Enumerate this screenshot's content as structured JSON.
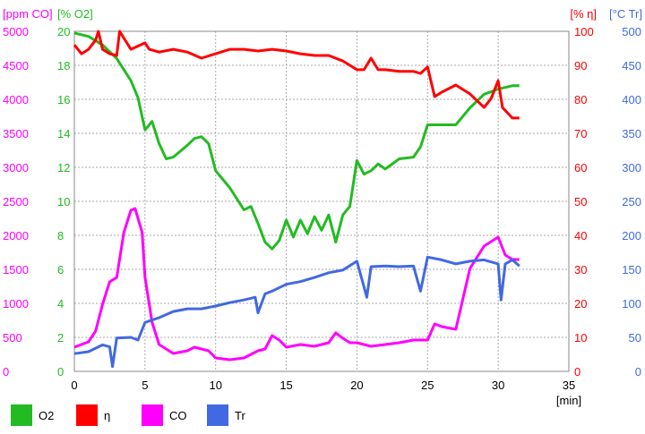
{
  "chart_data": {
    "type": "line",
    "xlabel": "[min]",
    "xlim": [
      0,
      35
    ],
    "xticks": [
      0,
      5,
      10,
      15,
      20,
      25,
      30,
      35
    ],
    "grid": true,
    "legend_placement": "bottom-left",
    "axes": {
      "co": {
        "label": "[ppm CO]",
        "range": [
          0,
          5000
        ],
        "ticks": [
          0,
          500,
          1000,
          1500,
          2000,
          2500,
          3000,
          3500,
          4000,
          4500,
          5000
        ],
        "color": "#ff00ff",
        "side": "left-outer"
      },
      "o2": {
        "label": "[% O2]",
        "range": [
          0,
          20
        ],
        "ticks": [
          0,
          2,
          4,
          6,
          8,
          10,
          12,
          14,
          16,
          18,
          20
        ],
        "color": "#22bb22",
        "side": "left-inner"
      },
      "eta": {
        "label": "[% η]",
        "range": [
          0,
          100
        ],
        "ticks": [
          0,
          10,
          20,
          30,
          40,
          50,
          60,
          70,
          80,
          90,
          100
        ],
        "color": "#ff0000",
        "side": "right-inner"
      },
      "tr": {
        "label": "[°C Tr]",
        "range": [
          0,
          500
        ],
        "ticks": [
          0,
          50,
          100,
          150,
          200,
          250,
          300,
          350,
          400,
          450,
          500
        ],
        "color": "#4169e1",
        "side": "right-outer"
      }
    },
    "series": [
      {
        "name": "O2",
        "axis": "o2",
        "color": "#22bb22",
        "points": [
          [
            0,
            19.9
          ],
          [
            1,
            19.7
          ],
          [
            2,
            19.2
          ],
          [
            3,
            18.4
          ],
          [
            4,
            17.1
          ],
          [
            4.5,
            16.1
          ],
          [
            5,
            14.2
          ],
          [
            5.5,
            14.7
          ],
          [
            6,
            13.4
          ],
          [
            6.5,
            12.5
          ],
          [
            7,
            12.6
          ],
          [
            8,
            13.3
          ],
          [
            8.5,
            13.7
          ],
          [
            9,
            13.8
          ],
          [
            9.5,
            13.4
          ],
          [
            10,
            11.8
          ],
          [
            11,
            10.8
          ],
          [
            12,
            9.5
          ],
          [
            12.5,
            9.7
          ],
          [
            13,
            8.7
          ],
          [
            13.5,
            7.6
          ],
          [
            14,
            7.2
          ],
          [
            14.5,
            7.7
          ],
          [
            15,
            8.9
          ],
          [
            15.5,
            7.9
          ],
          [
            16,
            8.9
          ],
          [
            16.5,
            8.1
          ],
          [
            17,
            9.1
          ],
          [
            17.5,
            8.3
          ],
          [
            18,
            9.2
          ],
          [
            18.5,
            7.6
          ],
          [
            19,
            9.2
          ],
          [
            19.5,
            9.7
          ],
          [
            20,
            12.4
          ],
          [
            20.5,
            11.6
          ],
          [
            21,
            11.8
          ],
          [
            21.5,
            12.2
          ],
          [
            22,
            11.9
          ],
          [
            23,
            12.5
          ],
          [
            24,
            12.6
          ],
          [
            24.5,
            13.2
          ],
          [
            25,
            14.5
          ],
          [
            26,
            14.5
          ],
          [
            27,
            14.5
          ],
          [
            28,
            15.5
          ],
          [
            29,
            16.3
          ],
          [
            30,
            16.6
          ],
          [
            31,
            16.8
          ],
          [
            31.5,
            16.8
          ]
        ]
      },
      {
        "name": "η",
        "axis": "eta",
        "color": "#ff0000",
        "points": [
          [
            0,
            96
          ],
          [
            0.5,
            93.4
          ],
          [
            1,
            94.7
          ],
          [
            1.5,
            97.4
          ],
          [
            1.7,
            100
          ],
          [
            2,
            94.7
          ],
          [
            2.5,
            93.4
          ],
          [
            3,
            92.9
          ],
          [
            3.2,
            100
          ],
          [
            4,
            94.7
          ],
          [
            5,
            96.6
          ],
          [
            5.3,
            94.7
          ],
          [
            6,
            93.9
          ],
          [
            7,
            94.7
          ],
          [
            8,
            93.9
          ],
          [
            9,
            92.1
          ],
          [
            10,
            93.4
          ],
          [
            11,
            94.7
          ],
          [
            12,
            94.7
          ],
          [
            13,
            94.2
          ],
          [
            14,
            94.7
          ],
          [
            15,
            94.2
          ],
          [
            16,
            93.4
          ],
          [
            17,
            92.9
          ],
          [
            18,
            92.9
          ],
          [
            19,
            91.3
          ],
          [
            20,
            88.7
          ],
          [
            20.5,
            88.7
          ],
          [
            21,
            92.1
          ],
          [
            21.5,
            88.7
          ],
          [
            22,
            88.7
          ],
          [
            23,
            88.2
          ],
          [
            24,
            88.2
          ],
          [
            24.5,
            87.6
          ],
          [
            25,
            89.5
          ],
          [
            25.5,
            80.8
          ],
          [
            26,
            82.1
          ],
          [
            27,
            84.2
          ],
          [
            27.5,
            82.9
          ],
          [
            28,
            81.6
          ],
          [
            29,
            77.6
          ],
          [
            29.5,
            80.3
          ],
          [
            30,
            85.5
          ],
          [
            30.3,
            77.6
          ],
          [
            31,
            74.5
          ],
          [
            31.5,
            74.5
          ]
        ]
      },
      {
        "name": "CO",
        "axis": "co",
        "color": "#ff00ff",
        "points": [
          [
            0,
            355
          ],
          [
            1,
            434
          ],
          [
            1.5,
            592
          ],
          [
            2,
            987
          ],
          [
            2.5,
            1316
          ],
          [
            3,
            1382
          ],
          [
            3.5,
            2039
          ],
          [
            4,
            2368
          ],
          [
            4.3,
            2395
          ],
          [
            4.8,
            2039
          ],
          [
            5,
            1382
          ],
          [
            5.5,
            724
          ],
          [
            6,
            395
          ],
          [
            7,
            263
          ],
          [
            8,
            303
          ],
          [
            8.5,
            355
          ],
          [
            9,
            329
          ],
          [
            9.5,
            303
          ],
          [
            10,
            197
          ],
          [
            11,
            171
          ],
          [
            12,
            197
          ],
          [
            13,
            303
          ],
          [
            13.5,
            329
          ],
          [
            14,
            526
          ],
          [
            14.5,
            461
          ],
          [
            15,
            355
          ],
          [
            16,
            395
          ],
          [
            17,
            368
          ],
          [
            18,
            421
          ],
          [
            18.5,
            566
          ],
          [
            19,
            487
          ],
          [
            19.5,
            421
          ],
          [
            20,
            421
          ],
          [
            21,
            368
          ],
          [
            22,
            395
          ],
          [
            23,
            421
          ],
          [
            24,
            461
          ],
          [
            25,
            461
          ],
          [
            25.5,
            697
          ],
          [
            26,
            658
          ],
          [
            27,
            618
          ],
          [
            28,
            1513
          ],
          [
            29,
            1842
          ],
          [
            30,
            1974
          ],
          [
            30.5,
            1711
          ],
          [
            31,
            1645
          ],
          [
            31.5,
            1645
          ]
        ]
      },
      {
        "name": "Tr",
        "axis": "tr",
        "color": "#4169e1",
        "points": [
          [
            0,
            26
          ],
          [
            1,
            29
          ],
          [
            2,
            39
          ],
          [
            2.5,
            36
          ],
          [
            2.7,
            7
          ],
          [
            3,
            49
          ],
          [
            4,
            50
          ],
          [
            4.5,
            46
          ],
          [
            5,
            72
          ],
          [
            6,
            79
          ],
          [
            7,
            88
          ],
          [
            8,
            92
          ],
          [
            9,
            92
          ],
          [
            10,
            96
          ],
          [
            11,
            101
          ],
          [
            12,
            105
          ],
          [
            12.8,
            109
          ],
          [
            13,
            86
          ],
          [
            13.5,
            114
          ],
          [
            14,
            118
          ],
          [
            15,
            128
          ],
          [
            16,
            132
          ],
          [
            17,
            138
          ],
          [
            18,
            145
          ],
          [
            19,
            149
          ],
          [
            20,
            162
          ],
          [
            20.7,
            109
          ],
          [
            21,
            154
          ],
          [
            22,
            155
          ],
          [
            23,
            154
          ],
          [
            24,
            155
          ],
          [
            24.5,
            118
          ],
          [
            25,
            168
          ],
          [
            26,
            164
          ],
          [
            27,
            158
          ],
          [
            28,
            162
          ],
          [
            29,
            164
          ],
          [
            30,
            158
          ],
          [
            30.2,
            105
          ],
          [
            30.5,
            158
          ],
          [
            31,
            164
          ],
          [
            31.5,
            155
          ]
        ]
      }
    ]
  }
}
